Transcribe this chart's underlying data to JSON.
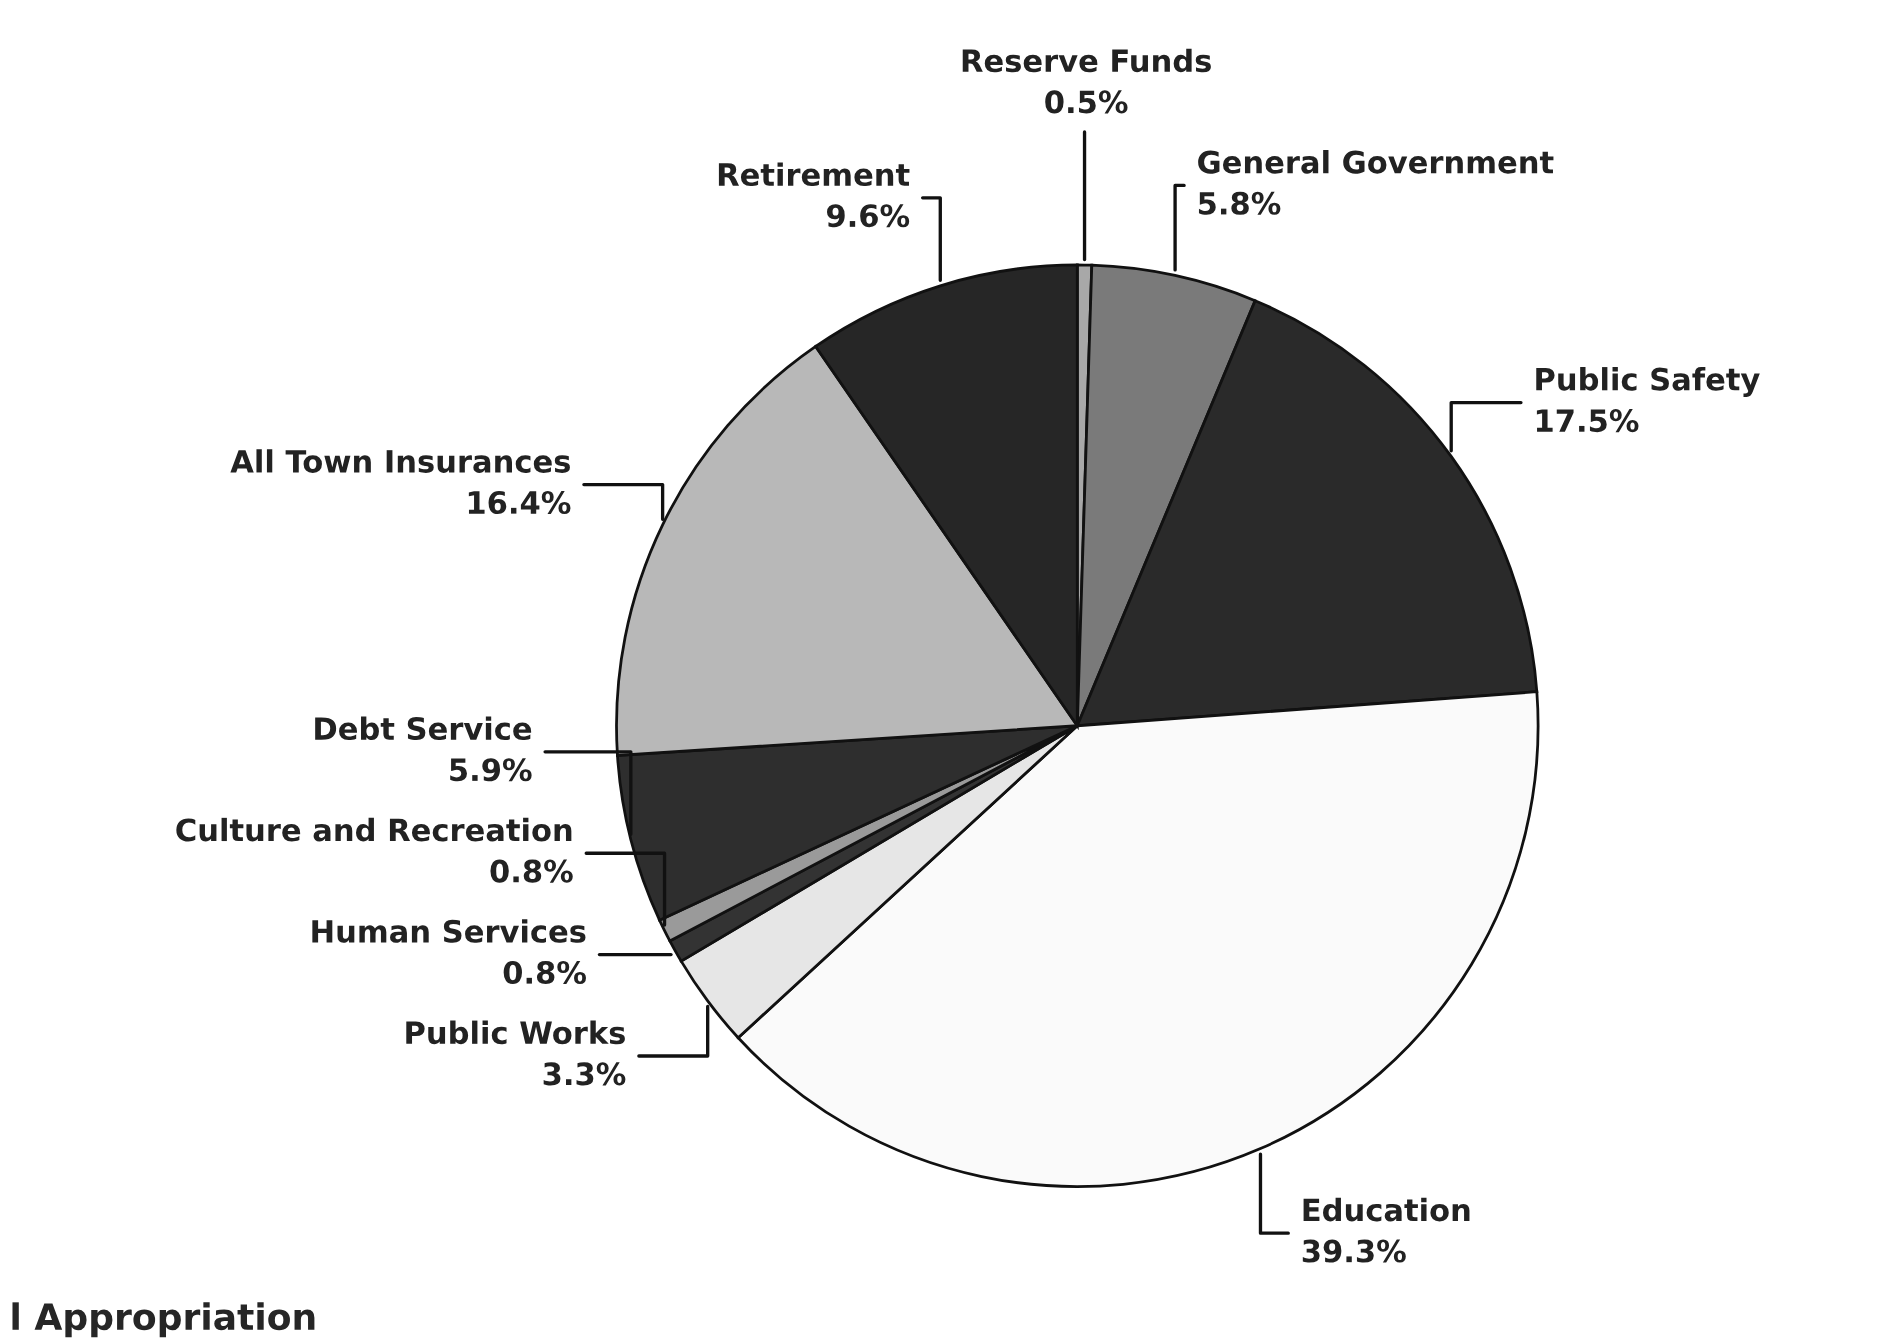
{
  "chart_data": {
    "type": "pie",
    "categories": [
      "Reserve Funds",
      "General Government",
      "Public Safety",
      "Education",
      "Public Works",
      "Human Services",
      "Culture and Recreation",
      "Debt Service",
      "All Town Insurances",
      "Retirement"
    ],
    "values": [
      0.5,
      5.8,
      17.5,
      39.3,
      3.3,
      0.8,
      0.8,
      5.9,
      16.4,
      9.6
    ],
    "value_labels": [
      "0.5%",
      "5.8%",
      "17.5%",
      "39.3%",
      "3.3%",
      "0.8%",
      "0.8%",
      "5.9%",
      "16.4%",
      "9.6%"
    ],
    "colors": [
      "#a8a8a8",
      "#7a7a7a",
      "#2a2a2a",
      "#fafafa",
      "#e6e6e6",
      "#333333",
      "#9a9a9a",
      "#2e2e2e",
      "#b8b8b8",
      "#262626"
    ],
    "annotations": [
      "l Appropriation"
    ]
  }
}
